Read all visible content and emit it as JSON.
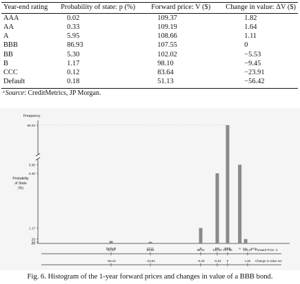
{
  "table": {
    "headers": [
      "Year-end rating",
      "Probability of state: p (%)",
      "Forward price: V ($)",
      "Change in value: ΔV ($)"
    ],
    "rows": [
      {
        "rating": "AAA",
        "prob": "0.02",
        "price": "109.37",
        "change": "1.82"
      },
      {
        "rating": "AA",
        "prob": "0.33",
        "price": "109.19",
        "change": "1.64"
      },
      {
        "rating": "A",
        "prob": "5.95",
        "price": "108.66",
        "change": "1.11"
      },
      {
        "rating": "BBB",
        "prob": "86.93",
        "price": "107.55",
        "change": "0"
      },
      {
        "rating": "BB",
        "prob": "5.30",
        "price": "102.02",
        "change": "−5.53"
      },
      {
        "rating": "B",
        "prob": "1.17",
        "price": "98.10",
        "change": "−9.45"
      },
      {
        "rating": "CCC",
        "prob": "0.12",
        "price": "83.64",
        "change": "−23.91"
      },
      {
        "rating": "Default",
        "prob": "0.18",
        "price": "51.13",
        "change": "−56.42"
      }
    ],
    "note_marker": "a",
    "note_source_label": "Source",
    "note_text": ": CreditMetrics, JP Morgan."
  },
  "chart_data": {
    "type": "bar",
    "categories": [
      "Default",
      "CCC",
      "B",
      "BB",
      "BBB",
      "A",
      "AA",
      "AAA"
    ],
    "forward_prices": [
      51.13,
      83.64,
      98.1,
      102.02,
      107.55,
      108.66,
      109.19,
      109.37
    ],
    "values": [
      0.18,
      0.12,
      1.17,
      5.3,
      86.93,
      5.95,
      0.33,
      0.02
    ],
    "ylabel_top": "Frequency",
    "ylabel_side": [
      "Probability",
      "of State",
      "(%)"
    ],
    "yticks": [
      "86.93",
      "5.95",
      "5.30",
      "1.17",
      ".33",
      ".12",
      ".02"
    ],
    "broken_axis": true,
    "grid": false,
    "bar_color": "#8a8a8a",
    "price_row": {
      "labels": [
        "51.13",
        "83.64",
        "98.10",
        "102.02",
        "107.55",
        "109.37"
      ],
      "axis_label": "Forward Price: V"
    },
    "change_row": {
      "labels": [
        "−56.42",
        "−23.91",
        "−9.45",
        "−5.53",
        "0",
        "1.82"
      ],
      "axis_label": "Change in value ΔV"
    }
  },
  "caption": "Fig. 6. Histogram of the 1-year forward prices and changes in value of a BBB bond."
}
